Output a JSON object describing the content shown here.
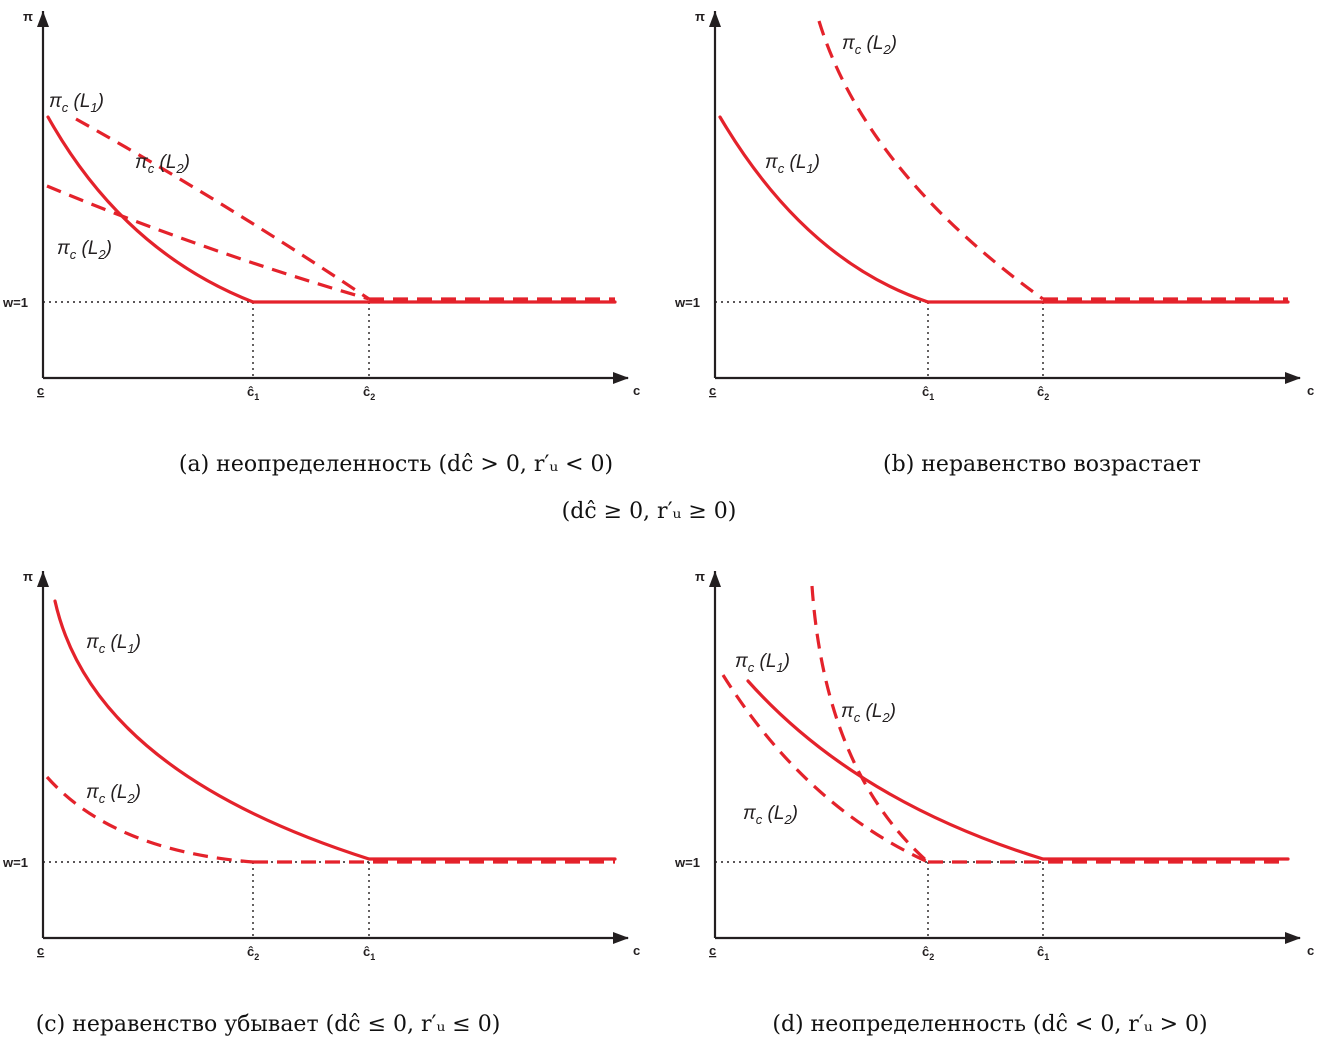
{
  "colors": {
    "curve": "#e4222b",
    "axis": "#231f20"
  },
  "axis_labels": {
    "y": "π",
    "x": "c",
    "origin": "c",
    "w_level": "w=1"
  },
  "ticks": {
    "c1": "ĉ",
    "c2": "ĉ",
    "sub1": "1",
    "sub2": "2"
  },
  "curve_labels": {
    "pi": "π",
    "c": "c",
    "L1": "L",
    "L2": "L",
    "one": "1",
    "two": "2"
  },
  "panels": {
    "a": {
      "caption": "(a) неопределенность (dĉ > 0, r′ᵤ < 0)"
    },
    "b": {
      "caption": "(b) неравенство возрастает",
      "caption2": "(dĉ ≥ 0, r′ᵤ ≥ 0)"
    },
    "c": {
      "caption": "(c) неравенство убывает (dĉ ≤ 0, r′ᵤ ≤ 0)"
    },
    "d": {
      "caption": "(d) неопределенность (dĉ < 0, r′ᵤ > 0)"
    }
  }
}
